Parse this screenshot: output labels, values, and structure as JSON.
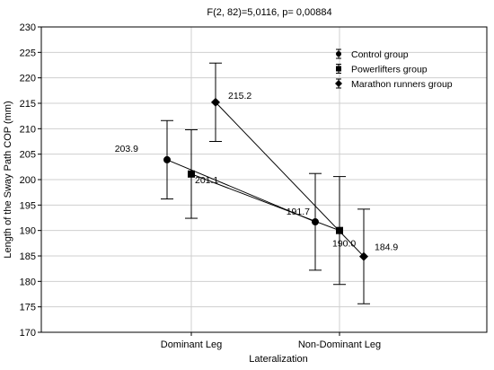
{
  "chart_data": {
    "type": "line",
    "title": "F(2, 82)=5,0116, p= 0,00884",
    "xlabel": "Lateralization",
    "ylabel": "Length of the Sway Path COP (mm)",
    "categories": [
      "Dominant Leg",
      "Non-Dominant Leg"
    ],
    "ylim": [
      170,
      230
    ],
    "yticks": [
      170,
      175,
      180,
      185,
      190,
      195,
      200,
      205,
      210,
      215,
      220,
      225,
      230
    ],
    "grid": true,
    "legend_position": "top-right",
    "series": [
      {
        "name": "Control group",
        "marker": "circle",
        "values": [
          203.9,
          191.7
        ],
        "error_low": [
          196.2,
          182.2
        ],
        "error_high": [
          211.6,
          201.2
        ],
        "labels": [
          "203.9",
          "191.7"
        ]
      },
      {
        "name": "Powerlifters group",
        "marker": "square",
        "values": [
          201.1,
          190.0
        ],
        "error_low": [
          192.4,
          179.4
        ],
        "error_high": [
          209.8,
          200.6
        ],
        "labels": [
          "201.1",
          "190.0"
        ]
      },
      {
        "name": "Marathon runners group",
        "marker": "diamond",
        "values": [
          215.2,
          184.9
        ],
        "error_low": [
          207.5,
          175.6
        ],
        "error_high": [
          222.9,
          194.2
        ],
        "labels": [
          "215.2",
          "184.9"
        ]
      }
    ]
  }
}
